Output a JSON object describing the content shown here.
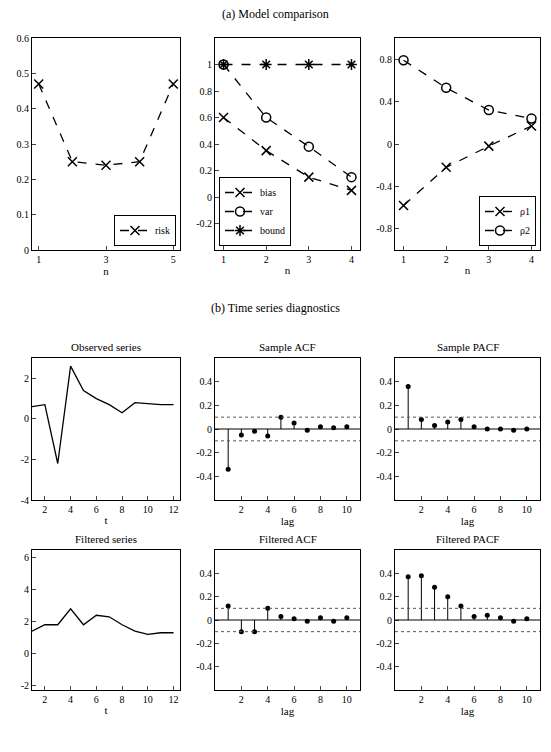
{
  "headings": [
    "(a) Model comparison",
    "(b) Time series diagnostics"
  ],
  "chart_data": [
    {
      "type": "line",
      "x_label": "n",
      "x": [
        1,
        2,
        3,
        4,
        5
      ],
      "xlim": [
        0.8,
        5.2
      ],
      "xticks": [
        1,
        3,
        5
      ],
      "ylim": [
        0,
        0.6
      ],
      "yticks": [
        0,
        0.1,
        0.2,
        0.3,
        0.4,
        0.5,
        0.6
      ],
      "legend": "lower right",
      "series": [
        {
          "name": "risk",
          "color": "#000000",
          "marker": "x",
          "line_style": "dash",
          "values": [
            0.47,
            0.25,
            0.24,
            0.25,
            0.47
          ]
        }
      ]
    },
    {
      "type": "line",
      "x_label": "n",
      "x": [
        1,
        2,
        3,
        4
      ],
      "xlim": [
        0.8,
        4.2
      ],
      "xticks": [
        1,
        2,
        3,
        4
      ],
      "ylim": [
        -0.4,
        1.2
      ],
      "yticks": [
        -0.2,
        0,
        0.2,
        0.4,
        0.6,
        0.8,
        1
      ],
      "legend": "lower left",
      "series": [
        {
          "name": "bias",
          "color": "#000000",
          "marker": "x",
          "line_style": "dash",
          "values": [
            0.6,
            0.35,
            0.15,
            0.05
          ]
        },
        {
          "name": "var",
          "color": "#000000",
          "marker": "circle",
          "line_style": "dash",
          "values": [
            1,
            0.6,
            0.38,
            0.15
          ]
        },
        {
          "name": "bound",
          "color": "#000000",
          "marker": "asterisk",
          "line_style": "dash",
          "values": [
            1,
            1,
            1,
            1
          ]
        }
      ]
    },
    {
      "type": "line",
      "x_label": "n",
      "x": [
        1,
        2,
        3,
        4
      ],
      "xlim": [
        0.8,
        4.2
      ],
      "xticks": [
        1,
        2,
        3,
        4
      ],
      "ylim": [
        -1,
        1
      ],
      "yticks": [
        -0.8,
        -0.4,
        0,
        0.4,
        0.8
      ],
      "legend": "lower right",
      "series": [
        {
          "name": "ρ1",
          "color": "#000000",
          "marker": "x",
          "line_style": "dash",
          "values": [
            -0.58,
            -0.22,
            -0.02,
            0.17
          ]
        },
        {
          "name": "ρ2",
          "color": "#000000",
          "marker": "circle",
          "line_style": "dash",
          "values": [
            0.79,
            0.53,
            0.32,
            0.24
          ]
        }
      ]
    },
    {
      "type": "line",
      "title": "Observed series",
      "x_label": "t",
      "x": [
        1,
        2,
        3,
        4,
        5,
        6,
        7,
        8,
        9,
        10,
        11,
        12
      ],
      "xlim": [
        1,
        12.5
      ],
      "xticks": [
        2,
        4,
        6,
        8,
        10,
        12
      ],
      "ylim": [
        -4,
        3
      ],
      "yticks": [
        -4,
        -2,
        0,
        2
      ],
      "series": [
        {
          "color": "#000000",
          "line_style": "solid",
          "values": [
            0.6,
            0.7,
            -2.2,
            2.6,
            1.4,
            1.0,
            0.7,
            0.3,
            0.8,
            0.75,
            0.7,
            0.7
          ]
        }
      ]
    },
    {
      "type": "stem",
      "title": "Sample ACF",
      "x_label": "lag",
      "x": [
        1,
        2,
        3,
        4,
        5,
        6,
        7,
        8,
        9,
        10
      ],
      "xlim": [
        0,
        11
      ],
      "xticks": [
        2,
        4,
        6,
        8,
        10
      ],
      "ylim": [
        -0.6,
        0.6
      ],
      "yticks": [
        -0.4,
        -0.2,
        0,
        0.2,
        0.4
      ],
      "bounds": [
        -0.1,
        0.1
      ],
      "series": [
        {
          "color": "#000000",
          "marker": "dot",
          "values": [
            -0.34,
            -0.05,
            -0.02,
            -0.06,
            0.1,
            0.05,
            -0.01,
            0.02,
            0.01,
            0.02
          ]
        }
      ]
    },
    {
      "type": "stem",
      "title": "Sample PACF",
      "x_label": "lag",
      "x": [
        1,
        2,
        3,
        4,
        5,
        6,
        7,
        8,
        9,
        10
      ],
      "xlim": [
        0,
        11
      ],
      "xticks": [
        2,
        4,
        6,
        8,
        10
      ],
      "ylim": [
        -0.6,
        0.6
      ],
      "yticks": [
        -0.4,
        -0.2,
        0,
        0.2,
        0.4
      ],
      "bounds": [
        -0.1,
        0.1
      ],
      "series": [
        {
          "color": "#000000",
          "marker": "dot",
          "values": [
            0.36,
            0.08,
            0.03,
            0.06,
            0.08,
            0.02,
            0.0,
            0.0,
            -0.01,
            0.0
          ]
        }
      ]
    },
    {
      "type": "line",
      "title": "Filtered series",
      "x_label": "t",
      "x": [
        1,
        2,
        3,
        4,
        5,
        6,
        7,
        8,
        9,
        10,
        11,
        12
      ],
      "xlim": [
        1,
        12.5
      ],
      "xticks": [
        2,
        4,
        6,
        8,
        10,
        12
      ],
      "ylim": [
        -2.3,
        6.5
      ],
      "yticks": [
        -2,
        0,
        2,
        4,
        6
      ],
      "series": [
        {
          "color": "#000000",
          "line_style": "solid",
          "values": [
            1.4,
            1.8,
            1.8,
            2.8,
            1.8,
            2.4,
            2.3,
            1.8,
            1.4,
            1.2,
            1.3,
            1.3
          ]
        }
      ]
    },
    {
      "type": "stem",
      "title": "Filtered ACF",
      "x_label": "lag",
      "x": [
        1,
        2,
        3,
        4,
        5,
        6,
        7,
        8,
        9,
        10
      ],
      "xlim": [
        0,
        11
      ],
      "xticks": [
        2,
        4,
        6,
        8,
        10
      ],
      "ylim": [
        -0.6,
        0.6
      ],
      "yticks": [
        -0.4,
        -0.2,
        0,
        0.2,
        0.4
      ],
      "bounds": [
        -0.1,
        0.1
      ],
      "series": [
        {
          "color": "#000000",
          "marker": "dot",
          "values": [
            0.12,
            -0.1,
            -0.1,
            0.1,
            0.03,
            0.01,
            -0.01,
            0.02,
            -0.01,
            0.02
          ]
        }
      ]
    },
    {
      "type": "stem",
      "title": "Filtered PACF",
      "x_label": "lag",
      "x": [
        1,
        2,
        3,
        4,
        5,
        6,
        7,
        8,
        9,
        10
      ],
      "xlim": [
        0,
        11
      ],
      "xticks": [
        2,
        4,
        6,
        8,
        10
      ],
      "ylim": [
        -0.6,
        0.6
      ],
      "yticks": [
        -0.4,
        -0.2,
        0,
        0.2,
        0.4
      ],
      "bounds": [
        -0.1,
        0.1
      ],
      "series": [
        {
          "color": "#000000",
          "marker": "dot",
          "values": [
            0.37,
            0.38,
            0.28,
            0.2,
            0.12,
            0.03,
            0.04,
            0.02,
            -0.01,
            0.01
          ]
        }
      ]
    }
  ]
}
